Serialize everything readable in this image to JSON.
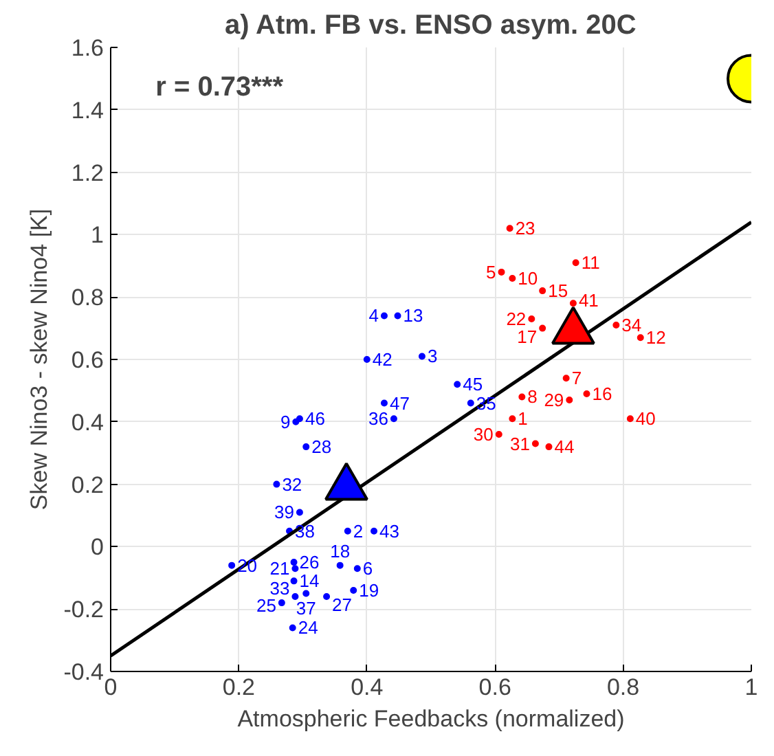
{
  "chart_data": {
    "type": "scatter",
    "title": "a) Atm. FB vs. ENSO asym. 20C",
    "xlabel": "Atmospheric Feedbacks (normalized)",
    "ylabel": "Skew Nino3 - skew Nino4 [K]",
    "xlim": [
      0,
      1
    ],
    "ylim": [
      -0.4,
      1.6
    ],
    "xticks": [
      0,
      0.2,
      0.4,
      0.6,
      0.8,
      1
    ],
    "yticks": [
      -0.4,
      -0.2,
      0,
      0.2,
      0.4,
      0.6,
      0.8,
      1,
      1.2,
      1.4,
      1.6
    ],
    "grid": true,
    "annotations": [
      "r = 0.73***",
      {
        "text": "4",
        "x": 0.427,
        "y": 0.74
      },
      {
        "text": "13",
        "x": 0.448,
        "y": 0.74
      },
      {
        "text": "42",
        "x": 0.4,
        "y": 0.6
      },
      {
        "text": "3",
        "x": 0.486,
        "y": 0.61
      },
      {
        "text": "45",
        "x": 0.541,
        "y": 0.52
      },
      {
        "text": "35",
        "x": 0.562,
        "y": 0.46
      },
      {
        "text": "47",
        "x": 0.427,
        "y": 0.46
      },
      {
        "text": "36",
        "x": 0.442,
        "y": 0.41
      },
      {
        "text": "9",
        "x": 0.289,
        "y": 0.4
      },
      {
        "text": "46",
        "x": 0.295,
        "y": 0.41
      },
      {
        "text": "28",
        "x": 0.305,
        "y": 0.32
      },
      {
        "text": "32",
        "x": 0.259,
        "y": 0.2
      },
      {
        "text": "39",
        "x": 0.295,
        "y": 0.11
      },
      {
        "text": "38",
        "x": 0.279,
        "y": 0.05
      },
      {
        "text": "2",
        "x": 0.37,
        "y": 0.05
      },
      {
        "text": "43",
        "x": 0.411,
        "y": 0.05
      },
      {
        "text": "20",
        "x": 0.189,
        "y": -0.06
      },
      {
        "text": "26",
        "x": 0.286,
        "y": -0.05
      },
      {
        "text": "21",
        "x": 0.288,
        "y": -0.07
      },
      {
        "text": "14",
        "x": 0.286,
        "y": -0.11
      },
      {
        "text": "18",
        "x": 0.358,
        "y": -0.06
      },
      {
        "text": "6",
        "x": 0.385,
        "y": -0.07
      },
      {
        "text": "19",
        "x": 0.379,
        "y": -0.14
      },
      {
        "text": "33",
        "x": 0.288,
        "y": -0.16
      },
      {
        "text": "25",
        "x": 0.267,
        "y": -0.18
      },
      {
        "text": "37",
        "x": 0.305,
        "y": -0.15
      },
      {
        "text": "27",
        "x": 0.337,
        "y": -0.16
      },
      {
        "text": "24",
        "x": 0.284,
        "y": -0.26
      },
      {
        "text": "23",
        "x": 0.623,
        "y": 1.02
      },
      {
        "text": "11",
        "x": 0.726,
        "y": 0.91
      },
      {
        "text": "5",
        "x": 0.61,
        "y": 0.88
      },
      {
        "text": "10",
        "x": 0.627,
        "y": 0.86
      },
      {
        "text": "15",
        "x": 0.674,
        "y": 0.82
      },
      {
        "text": "41",
        "x": 0.722,
        "y": 0.78
      },
      {
        "text": "22",
        "x": 0.657,
        "y": 0.73
      },
      {
        "text": "17",
        "x": 0.674,
        "y": 0.7
      },
      {
        "text": "34",
        "x": 0.789,
        "y": 0.71
      },
      {
        "text": "12",
        "x": 0.827,
        "y": 0.67
      },
      {
        "text": "7",
        "x": 0.711,
        "y": 0.54
      },
      {
        "text": "16",
        "x": 0.743,
        "y": 0.49
      },
      {
        "text": "29",
        "x": 0.716,
        "y": 0.47
      },
      {
        "text": "8",
        "x": 0.642,
        "y": 0.48
      },
      {
        "text": "1",
        "x": 0.627,
        "y": 0.41
      },
      {
        "text": "30",
        "x": 0.606,
        "y": 0.36
      },
      {
        "text": "40",
        "x": 0.811,
        "y": 0.41
      },
      {
        "text": "31",
        "x": 0.663,
        "y": 0.33
      },
      {
        "text": "44",
        "x": 0.684,
        "y": 0.32
      }
    ],
    "series": [
      {
        "marker": "circle",
        "color": "#0000ff",
        "x": [
          0.427,
          0.448,
          0.4,
          0.486,
          0.541,
          0.562,
          0.427,
          0.442,
          0.289,
          0.295,
          0.305,
          0.259,
          0.295,
          0.279,
          0.37,
          0.411,
          0.189,
          0.286,
          0.288,
          0.286,
          0.358,
          0.385,
          0.379,
          0.288,
          0.267,
          0.305,
          0.337,
          0.284
        ],
        "values": [
          0.74,
          0.74,
          0.6,
          0.61,
          0.52,
          0.46,
          0.46,
          0.41,
          0.4,
          0.41,
          0.32,
          0.2,
          0.11,
          0.05,
          0.05,
          0.05,
          -0.06,
          -0.05,
          -0.07,
          -0.11,
          -0.06,
          -0.07,
          -0.14,
          -0.16,
          -0.18,
          -0.15,
          -0.16,
          -0.26
        ]
      },
      {
        "marker": "circle",
        "color": "#ff0000",
        "x": [
          0.623,
          0.726,
          0.61,
          0.627,
          0.674,
          0.722,
          0.657,
          0.674,
          0.789,
          0.827,
          0.711,
          0.743,
          0.716,
          0.642,
          0.627,
          0.606,
          0.811,
          0.663,
          0.684
        ],
        "values": [
          1.02,
          0.91,
          0.88,
          0.86,
          0.82,
          0.78,
          0.73,
          0.7,
          0.71,
          0.67,
          0.54,
          0.49,
          0.47,
          0.48,
          0.41,
          0.36,
          0.41,
          0.33,
          0.32
        ]
      },
      {
        "type": "line",
        "color": "#000000",
        "x": [
          0,
          1
        ],
        "values": [
          -0.35,
          1.04
        ]
      },
      {
        "marker": "triangle",
        "color": "#0000ff",
        "x": [
          0.368
        ],
        "values": [
          0.19
        ]
      },
      {
        "marker": "triangle",
        "color": "#ff0000",
        "x": [
          0.722
        ],
        "values": [
          0.69
        ]
      },
      {
        "marker": "circle",
        "color": "#ffff00",
        "x": [
          1.0
        ],
        "values": [
          1.5
        ]
      }
    ]
  }
}
